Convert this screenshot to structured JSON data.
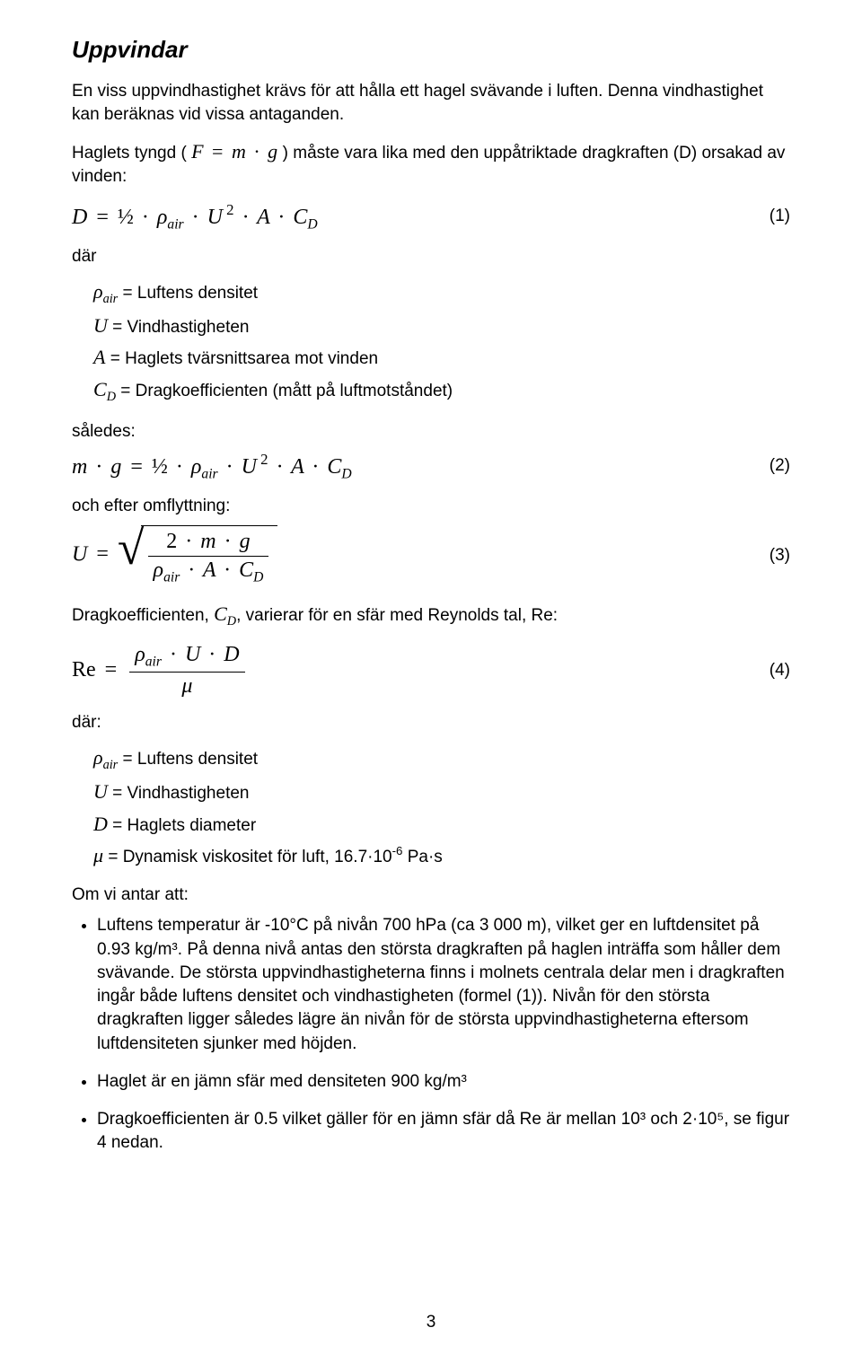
{
  "heading": "Uppvindar",
  "intro": "En viss uppvindhastighet krävs för att hålla ett hagel svävande i luften. Denna vindhastighet kan beräknas vid vissa antaganden.",
  "para2_pre": "Haglets tyngd (",
  "para2_post": ") måste vara lika med den uppåtriktade dragkraften (D) orsakad av vinden:",
  "where_label": "där",
  "defs1": {
    "rho_label": "= Luftens densitet",
    "U_label": "= Vindhastigheten",
    "A_label": "= Haglets tvärsnittsarea mot vinden",
    "CD_label": "= Dragkoefficienten (mått på luftmotståndet)"
  },
  "thus_label": "således:",
  "after_rearrange": "och efter omflyttning:",
  "drag_varies_pre": "Dragkoefficienten,",
  "drag_varies_post": ", varierar för en sfär med Reynolds tal, Re:",
  "where_label2": "där:",
  "defs2": {
    "rho_label": "= Luftens densitet",
    "U_label": "= Vindhastigheten",
    "D_label": "= Haglets diameter",
    "mu_label_pre": "= Dynamisk viskositet för luft, 16.7",
    "mu_exp": "-6",
    "mu_label_post": " Pa·s"
  },
  "assume_label": "Om vi antar att:",
  "bullet1": "Luftens temperatur är -10°C på nivån 700 hPa (ca 3 000 m), vilket ger en luftdensitet på 0.93 kg/m³. På denna nivå antas den största dragkraften på haglen inträffa som håller dem svävande. De största uppvindhastigheterna finns i molnets centrala delar men i dragkraften ingår både luftens densitet och vindhastigheten (formel (1)). Nivån för den största dragkraften ligger således lägre än nivån för de största uppvindhastigheterna eftersom luftdensiteten sjunker med höjden.",
  "bullet2": "Haglet är en jämn sfär med densiteten 900 kg/m³",
  "bullet3": "Dragkoefficienten är 0.5 vilket gäller för en jämn sfär då Re är mellan 10³ och 2·10⁵, se figur 4 nedan.",
  "eq_num1": "(1)",
  "eq_num2": "(2)",
  "eq_num3": "(3)",
  "eq_num4": "(4)",
  "page_number": "3"
}
